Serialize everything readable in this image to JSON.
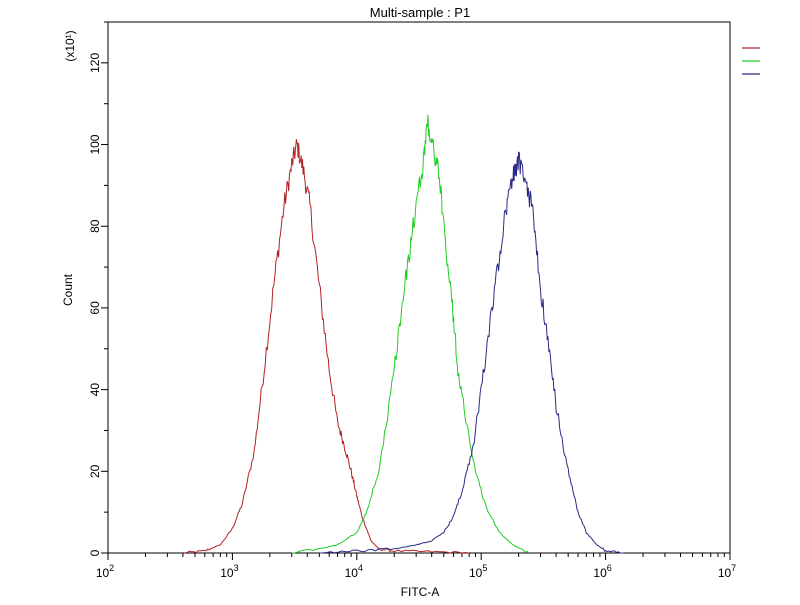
{
  "chart_data": {
    "type": "line",
    "title": "Multi-sample : P1",
    "xlabel": "FITC-A",
    "ylabel": "Count",
    "y_multiplier_label": "(x10¹)",
    "x_scale": "log",
    "xlim": [
      100,
      10000000
    ],
    "ylim": [
      0,
      130
    ],
    "x_ticks": [
      100,
      1000,
      10000,
      100000,
      1000000,
      10000000
    ],
    "x_tick_labels": [
      {
        "base": "10",
        "exp": "2"
      },
      {
        "base": "10",
        "exp": "3"
      },
      {
        "base": "10",
        "exp": "4"
      },
      {
        "base": "10",
        "exp": "5"
      },
      {
        "base": "10",
        "exp": "6"
      },
      {
        "base": "10",
        "exp": "7"
      }
    ],
    "y_ticks": [
      0,
      20,
      40,
      60,
      80,
      100,
      120
    ],
    "y_tick_labels": [
      "0",
      "20",
      "40",
      "60",
      "80",
      "100",
      "120"
    ],
    "grid": false,
    "legend": "top-right, lines only, no text",
    "series": [
      {
        "color": "#b22222",
        "points": [
          [
            400,
            0
          ],
          [
            600,
            0.5
          ],
          [
            800,
            2
          ],
          [
            1000,
            6
          ],
          [
            1200,
            12
          ],
          [
            1500,
            25
          ],
          [
            1800,
            45
          ],
          [
            2200,
            68
          ],
          [
            2600,
            85
          ],
          [
            3000,
            95
          ],
          [
            3300,
            100
          ],
          [
            3700,
            94
          ],
          [
            4200,
            85
          ],
          [
            5000,
            65
          ],
          [
            6000,
            45
          ],
          [
            7000,
            32
          ],
          [
            8000,
            26
          ],
          [
            9000,
            20
          ],
          [
            10000,
            14
          ],
          [
            11000,
            9
          ],
          [
            13000,
            3
          ],
          [
            15000,
            1
          ],
          [
            20000,
            0.5
          ],
          [
            40000,
            0.3
          ],
          [
            80000,
            0
          ]
        ]
      },
      {
        "color": "#22cc22",
        "points": [
          [
            3000,
            0
          ],
          [
            5000,
            1
          ],
          [
            7000,
            2
          ],
          [
            10000,
            5
          ],
          [
            12000,
            10
          ],
          [
            15000,
            20
          ],
          [
            18000,
            35
          ],
          [
            22000,
            55
          ],
          [
            26000,
            72
          ],
          [
            30000,
            85
          ],
          [
            34000,
            95
          ],
          [
            37000,
            106
          ],
          [
            40000,
            100
          ],
          [
            45000,
            95
          ],
          [
            50000,
            80
          ],
          [
            58000,
            62
          ],
          [
            65000,
            45
          ],
          [
            75000,
            33
          ],
          [
            90000,
            20
          ],
          [
            110000,
            11
          ],
          [
            140000,
            5
          ],
          [
            180000,
            2
          ],
          [
            240000,
            0
          ]
        ]
      },
      {
        "color": "#2a2a88",
        "points": [
          [
            5000,
            0
          ],
          [
            10000,
            0.5
          ],
          [
            20000,
            1
          ],
          [
            30000,
            2
          ],
          [
            40000,
            3
          ],
          [
            50000,
            5
          ],
          [
            60000,
            9
          ],
          [
            70000,
            15
          ],
          [
            85000,
            25
          ],
          [
            100000,
            40
          ],
          [
            120000,
            58
          ],
          [
            140000,
            73
          ],
          [
            160000,
            85
          ],
          [
            180000,
            92
          ],
          [
            200000,
            96
          ],
          [
            230000,
            91
          ],
          [
            260000,
            83
          ],
          [
            300000,
            65
          ],
          [
            350000,
            50
          ],
          [
            400000,
            36
          ],
          [
            500000,
            20
          ],
          [
            600000,
            10
          ],
          [
            700000,
            5
          ],
          [
            850000,
            2
          ],
          [
            1000000,
            0.5
          ],
          [
            1400000,
            0
          ]
        ]
      }
    ]
  }
}
